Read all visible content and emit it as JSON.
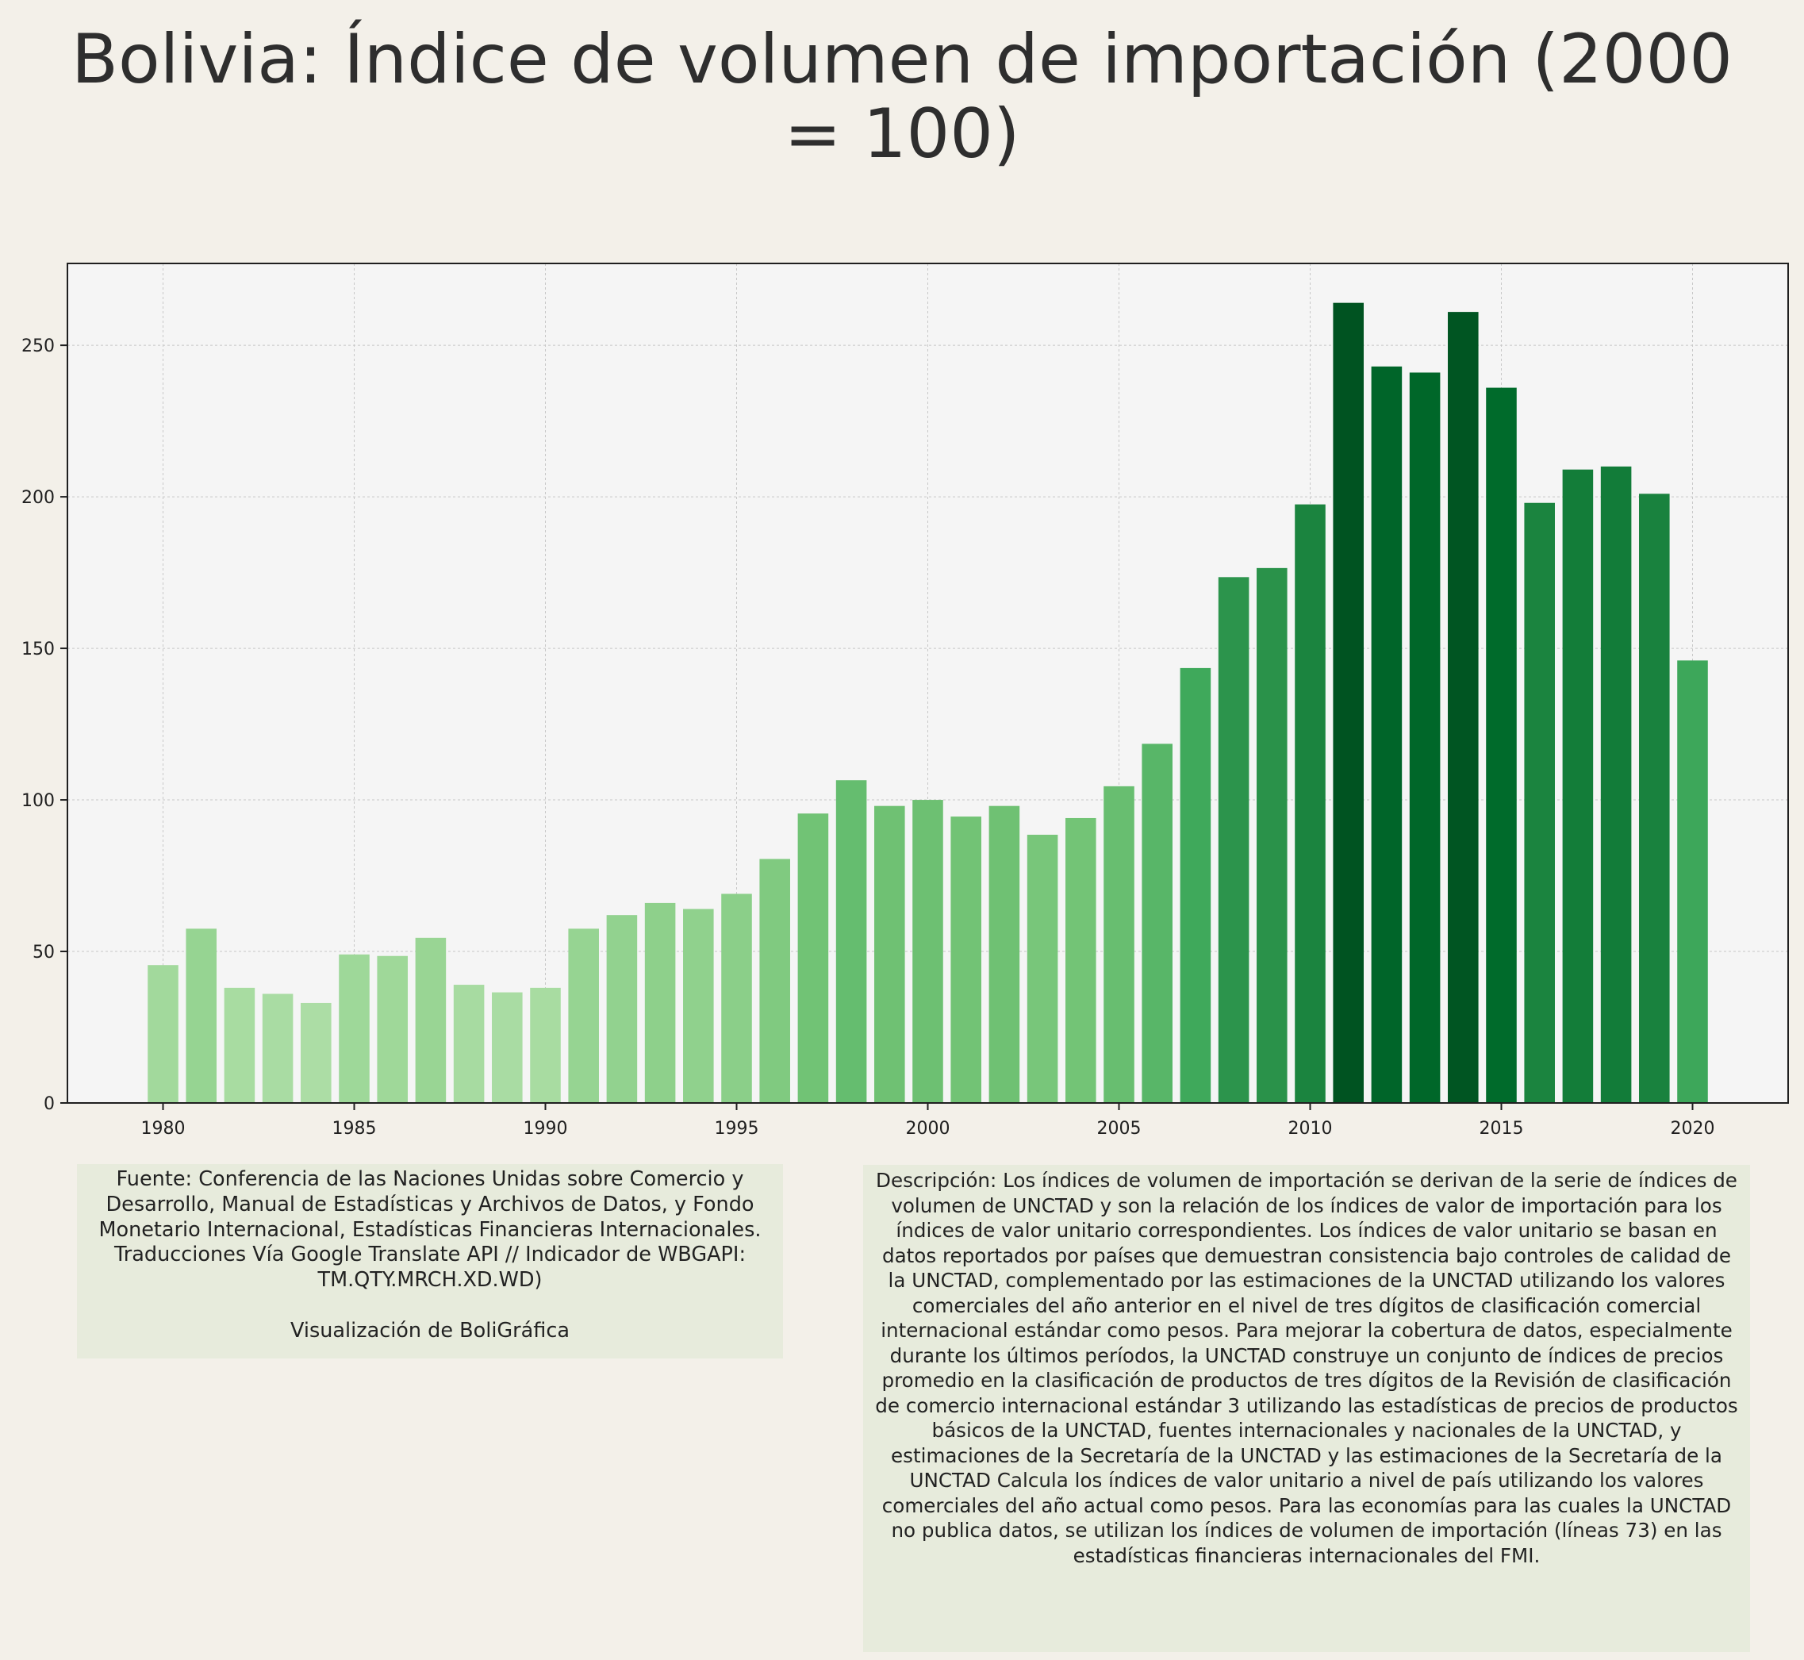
{
  "title": "Bolivia:  Índice de volumen de importación (2000 = 100)",
  "colors": {
    "background": "#f3f0e9",
    "plot_background": "#f5f5f5",
    "grid": "#c8c8c8",
    "axis": "#1f1f1f",
    "text": "#2e2e2e",
    "annotation_box": "#e7ebdc",
    "bar_scale": [
      "#c7e9c0",
      "#a1d99b",
      "#74c476",
      "#41ab5d",
      "#238b45",
      "#006d2c",
      "#00441b"
    ]
  },
  "source_text": "Fuente: Conferencia de las Naciones Unidas sobre Comercio y Desarrollo, Manual de Estadísticas y Archivos de Datos, y Fondo Monetario Internacional, Estadísticas Financieras Internacionales. Traducciones Vía Google Translate API // Indicador de WBGAPI: TM.QTY.MRCH.XD.WD)",
  "credit_text": "Visualización de BoliGráfica",
  "description_text": "Descripción: Los índices de volumen de importación se derivan de la serie de índices de volumen de UNCTAD y son la relación de los índices de valor de importación para los índices de valor unitario correspondientes. Los índices de valor unitario se basan en datos reportados por países que demuestran consistencia bajo controles de calidad de la UNCTAD, complementado por las estimaciones de la UNCTAD utilizando los valores comerciales del año anterior en el nivel de tres dígitos de clasificación comercial internacional estándar como pesos. Para mejorar la cobertura de datos, especialmente durante los últimos períodos, la UNCTAD construye un conjunto de índices de precios promedio en la clasificación de productos de tres dígitos de la Revisión de clasificación de comercio internacional estándar 3 utilizando las estadísticas de precios de productos básicos de la UNCTAD, fuentes internacionales y nacionales de la UNCTAD, y estimaciones de la Secretaría de la UNCTAD y las estimaciones de la Secretaría de la UNCTAD Calcula los índices de valor unitario a nivel de país utilizando los valores comerciales del año actual como pesos. Para las economías para las cuales la UNCTAD no publica datos, se utilizan los índices de volumen de importación (líneas 73) en las estadísticas financieras internacionales del FMI.",
  "chart_data": {
    "type": "bar",
    "title": "Bolivia:  Índice de volumen de importación (2000 = 100)",
    "xlabel": "",
    "ylabel": "",
    "x": [
      1980,
      1981,
      1982,
      1983,
      1984,
      1985,
      1986,
      1987,
      1988,
      1989,
      1990,
      1991,
      1992,
      1993,
      1994,
      1995,
      1996,
      1997,
      1998,
      1999,
      2000,
      2001,
      2002,
      2003,
      2004,
      2005,
      2006,
      2007,
      2008,
      2009,
      2010,
      2011,
      2012,
      2013,
      2014,
      2015,
      2016,
      2017,
      2018,
      2019,
      2020
    ],
    "values": [
      45.5,
      57.5,
      38,
      36,
      33,
      49,
      48.5,
      54.5,
      39,
      36.5,
      38,
      57.5,
      62,
      66,
      64,
      69,
      80.5,
      95.5,
      106.5,
      98,
      100,
      94.5,
      98,
      88.5,
      94,
      104.5,
      118.5,
      143.5,
      173.5,
      176.5,
      197.5,
      264,
      243,
      241,
      261,
      236,
      198,
      209,
      210,
      201,
      146
    ],
    "xlim": [
      1977.5,
      2022.5
    ],
    "ylim": [
      0,
      277
    ],
    "xticks": [
      1980,
      1985,
      1990,
      1995,
      2000,
      2005,
      2010,
      2015,
      2020
    ],
    "yticks": [
      0,
      50,
      100,
      150,
      200,
      250
    ],
    "grid": true,
    "legend": "none",
    "bar_color_encoding": "green sequential scale by value"
  }
}
